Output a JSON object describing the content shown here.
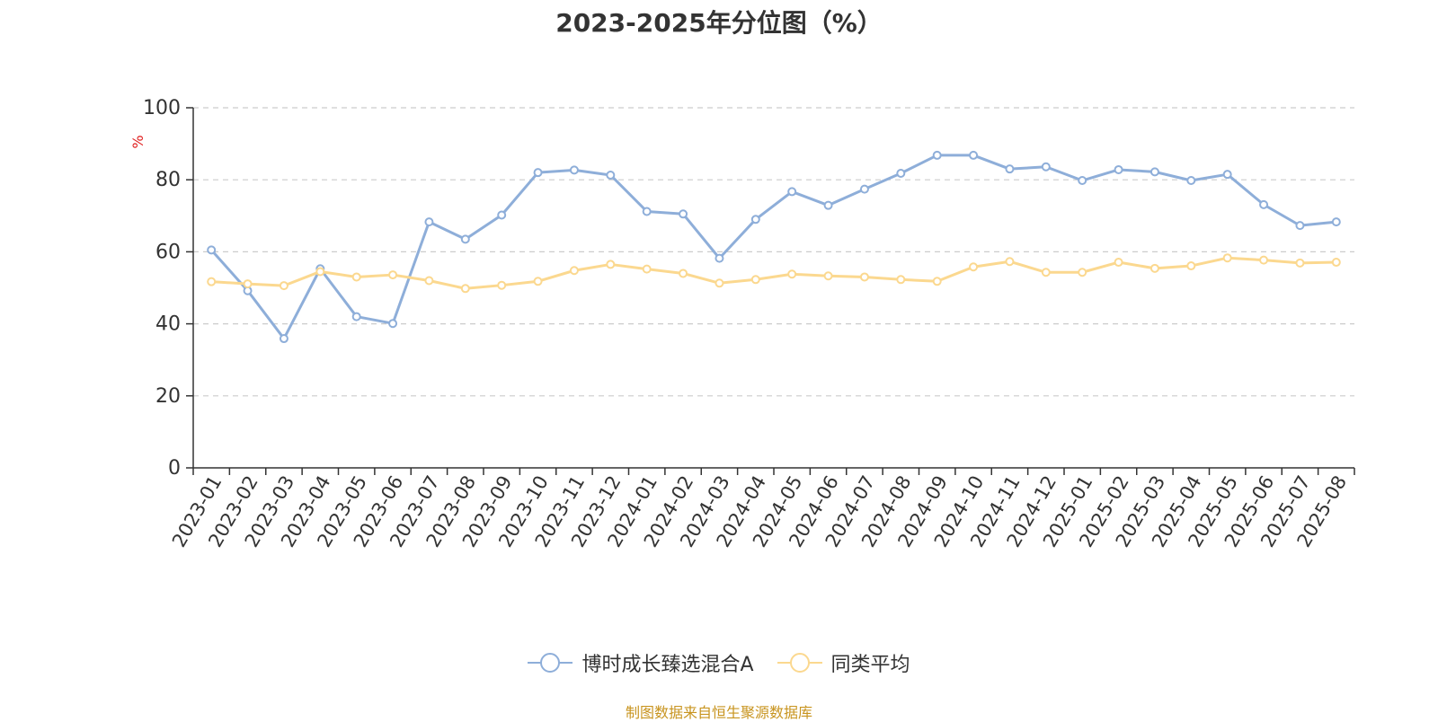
{
  "chart_data": {
    "type": "line",
    "title": "2023-2025年分位图（%）",
    "ylabel": "%",
    "ylim": [
      0,
      100
    ],
    "yticks": [
      0,
      20,
      40,
      60,
      80,
      100
    ],
    "grid": true,
    "legend_position": "bottom",
    "categories": [
      "2023-01",
      "2023-02",
      "2023-03",
      "2023-04",
      "2023-05",
      "2023-06",
      "2023-07",
      "2023-08",
      "2023-09",
      "2023-10",
      "2023-11",
      "2023-12",
      "2024-01",
      "2024-02",
      "2024-03",
      "2024-04",
      "2024-05",
      "2024-06",
      "2024-07",
      "2024-08",
      "2024-09",
      "2024-10",
      "2024-11",
      "2024-12",
      "2025-01",
      "2025-02",
      "2025-03",
      "2025-04",
      "2025-05",
      "2025-06",
      "2025-07",
      "2025-08"
    ],
    "series": [
      {
        "name": "博时成长臻选混合A",
        "color": "#8eaed9",
        "values": [
          60.5,
          49.2,
          35.9,
          55.3,
          42.0,
          40.1,
          68.3,
          63.5,
          70.2,
          82.0,
          82.7,
          81.3,
          71.2,
          70.5,
          58.2,
          69.0,
          76.7,
          72.9,
          77.4,
          81.8,
          86.8,
          86.8,
          83.0,
          83.6,
          79.8,
          82.8,
          82.2,
          79.8,
          81.5,
          73.1,
          67.3,
          68.3
        ]
      },
      {
        "name": "同类平均",
        "color": "#fbd88f",
        "values": [
          51.7,
          51.1,
          50.6,
          54.5,
          53.0,
          53.6,
          52.0,
          49.8,
          50.7,
          51.8,
          54.8,
          56.5,
          55.2,
          54.0,
          51.3,
          52.3,
          53.8,
          53.3,
          53.0,
          52.3,
          51.8,
          55.8,
          57.3,
          54.3,
          54.3,
          57.1,
          55.4,
          56.1,
          58.3,
          57.7,
          56.9,
          57.1
        ]
      }
    ]
  },
  "footer": {
    "source": "制图数据来自恒生聚源数据库"
  }
}
